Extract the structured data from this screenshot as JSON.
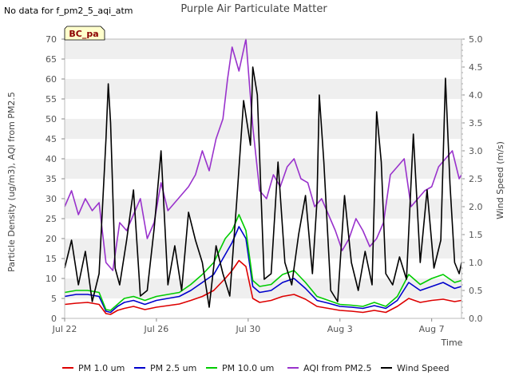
{
  "corner_note": "No data for f_pm2_5_aqi_atm",
  "chart_data": {
    "type": "line",
    "title": "Purple Air Particulate Matter",
    "site_label": "BC_pa",
    "xlabel": "Time",
    "ylabel_left": "Particle Density (ug/m3), AQI from PM2.5",
    "ylabel_right": "Wind Speed (m/s)",
    "ylim_left": [
      0,
      70
    ],
    "ylim_right": [
      0,
      5.0
    ],
    "xlim_days": [
      0,
      17.3
    ],
    "x_ticks": [
      {
        "label": "Jul 22",
        "day": 0
      },
      {
        "label": "Jul 26",
        "day": 4
      },
      {
        "label": "Jul 30",
        "day": 8
      },
      {
        "label": "Aug 3",
        "day": 12
      },
      {
        "label": "Aug 7",
        "day": 16
      }
    ],
    "y_ticks_left": [
      "0",
      "5",
      "10",
      "15",
      "20",
      "25",
      "30",
      "35",
      "40",
      "45",
      "50",
      "55",
      "60",
      "65",
      "70"
    ],
    "y_ticks_right": [
      "0.0",
      "0.5",
      "1.0",
      "1.5",
      "2.0",
      "2.5",
      "3.0",
      "3.5",
      "4.0",
      "4.5",
      "5.0"
    ],
    "legend_position": "bottom",
    "grid": "alternating bands",
    "series": [
      {
        "name": "PM 1.0 um",
        "color": "#dd0000",
        "axis": "left",
        "x": [
          0.0,
          0.5,
          1.0,
          1.5,
          1.8,
          2.0,
          2.3,
          2.6,
          3.0,
          3.5,
          4.0,
          4.5,
          5.0,
          5.5,
          6.0,
          6.5,
          7.0,
          7.3,
          7.6,
          7.9,
          8.2,
          8.5,
          9.0,
          9.5,
          10.0,
          10.5,
          11.0,
          11.5,
          12.0,
          12.5,
          13.0,
          13.5,
          14.0,
          14.5,
          15.0,
          15.5,
          16.0,
          16.5,
          17.0,
          17.3
        ],
        "y": [
          3.5,
          3.8,
          4.0,
          3.5,
          1.2,
          1.0,
          2.0,
          2.5,
          3.0,
          2.2,
          2.8,
          3.2,
          3.6,
          4.5,
          5.5,
          7.0,
          10.0,
          12.0,
          14.5,
          13.0,
          5.0,
          4.0,
          4.5,
          5.5,
          6.0,
          4.8,
          3.0,
          2.5,
          2.0,
          1.8,
          1.5,
          2.0,
          1.5,
          3.0,
          5.0,
          4.0,
          4.5,
          4.8,
          4.2,
          4.5
        ]
      },
      {
        "name": "PM 2.5 um",
        "color": "#0000cc",
        "axis": "left",
        "x": [
          0.0,
          0.5,
          1.0,
          1.5,
          1.8,
          2.0,
          2.3,
          2.6,
          3.0,
          3.5,
          4.0,
          4.5,
          5.0,
          5.5,
          6.0,
          6.5,
          7.0,
          7.3,
          7.6,
          7.9,
          8.2,
          8.5,
          9.0,
          9.5,
          10.0,
          10.5,
          11.0,
          11.5,
          12.0,
          12.5,
          13.0,
          13.5,
          14.0,
          14.5,
          15.0,
          15.5,
          16.0,
          16.5,
          17.0,
          17.3
        ],
        "y": [
          5.5,
          6.0,
          6.0,
          5.5,
          1.8,
          1.5,
          3.0,
          4.0,
          4.5,
          3.5,
          4.5,
          5.0,
          5.5,
          7.0,
          9.0,
          11.0,
          16.0,
          19.0,
          23.0,
          20.0,
          8.0,
          6.5,
          7.0,
          9.0,
          10.0,
          7.5,
          4.5,
          3.8,
          3.0,
          2.8,
          2.5,
          3.2,
          2.5,
          4.5,
          9.0,
          7.0,
          8.0,
          9.0,
          7.5,
          8.0
        ]
      },
      {
        "name": "PM 10.0 um",
        "color": "#00cc00",
        "axis": "left",
        "x": [
          0.0,
          0.5,
          1.0,
          1.5,
          1.8,
          2.0,
          2.3,
          2.6,
          3.0,
          3.5,
          4.0,
          4.5,
          5.0,
          5.5,
          6.0,
          6.5,
          7.0,
          7.3,
          7.6,
          7.9,
          8.2,
          8.5,
          9.0,
          9.5,
          10.0,
          10.5,
          11.0,
          11.5,
          12.0,
          12.5,
          13.0,
          13.5,
          14.0,
          14.5,
          15.0,
          15.5,
          16.0,
          16.5,
          17.0,
          17.3
        ],
        "y": [
          6.5,
          7.0,
          7.0,
          6.5,
          2.2,
          2.0,
          3.5,
          5.0,
          5.5,
          4.5,
          5.5,
          6.0,
          6.5,
          8.5,
          11.0,
          14.0,
          20.0,
          22.0,
          26.0,
          22.0,
          9.5,
          8.0,
          8.5,
          11.0,
          12.0,
          9.0,
          5.5,
          4.5,
          3.5,
          3.3,
          3.0,
          4.0,
          3.0,
          5.5,
          11.0,
          8.5,
          10.0,
          11.0,
          9.0,
          9.5
        ]
      },
      {
        "name": "AQI from PM2.5",
        "color": "#9932cc",
        "axis": "left",
        "x": [
          0.0,
          0.3,
          0.6,
          0.9,
          1.2,
          1.5,
          1.8,
          2.1,
          2.4,
          2.7,
          3.0,
          3.3,
          3.6,
          3.9,
          4.2,
          4.5,
          4.8,
          5.1,
          5.4,
          5.7,
          6.0,
          6.3,
          6.6,
          6.9,
          7.1,
          7.3,
          7.6,
          7.9,
          8.2,
          8.5,
          8.8,
          9.1,
          9.4,
          9.7,
          10.0,
          10.3,
          10.6,
          10.9,
          11.2,
          11.5,
          11.8,
          12.1,
          12.4,
          12.7,
          13.0,
          13.3,
          13.6,
          13.9,
          14.2,
          14.5,
          14.8,
          15.1,
          15.4,
          15.7,
          16.0,
          16.3,
          16.6,
          16.9,
          17.2,
          17.3
        ],
        "y": [
          28.0,
          32.0,
          26.0,
          30.0,
          27.0,
          29.0,
          14.0,
          12.0,
          24.0,
          22.0,
          26.0,
          30.0,
          20.0,
          24.0,
          34.0,
          27.0,
          29.0,
          31.0,
          33.0,
          36.0,
          42.0,
          37.0,
          45.0,
          50.0,
          60.0,
          68.0,
          62.0,
          70.0,
          48.0,
          32.0,
          30.0,
          36.0,
          33.0,
          38.0,
          40.0,
          35.0,
          34.0,
          28.0,
          30.0,
          26.0,
          22.0,
          17.0,
          20.0,
          25.0,
          22.0,
          18.0,
          20.0,
          24.0,
          36.0,
          38.0,
          40.0,
          28.0,
          30.0,
          32.0,
          33.0,
          38.0,
          40.0,
          42.0,
          35.0,
          36.0
        ]
      },
      {
        "name": "Wind Speed",
        "color": "#000000",
        "axis": "right",
        "x": [
          0.0,
          0.3,
          0.6,
          0.9,
          1.2,
          1.5,
          1.8,
          1.9,
          2.0,
          2.2,
          2.4,
          2.7,
          3.0,
          3.3,
          3.6,
          3.9,
          4.2,
          4.5,
          4.8,
          5.1,
          5.4,
          5.7,
          6.0,
          6.3,
          6.6,
          6.9,
          7.2,
          7.5,
          7.8,
          8.1,
          8.2,
          8.4,
          8.7,
          9.0,
          9.3,
          9.6,
          9.9,
          10.2,
          10.5,
          10.8,
          11.0,
          11.1,
          11.3,
          11.6,
          11.9,
          12.2,
          12.5,
          12.8,
          13.1,
          13.4,
          13.6,
          13.8,
          14.0,
          14.3,
          14.6,
          14.9,
          15.2,
          15.5,
          15.8,
          16.1,
          16.4,
          16.6,
          16.8,
          17.0,
          17.2,
          17.3
        ],
        "y": [
          0.9,
          1.4,
          0.6,
          1.2,
          0.3,
          0.8,
          3.2,
          4.2,
          3.5,
          0.9,
          0.6,
          1.4,
          2.3,
          0.4,
          0.5,
          1.6,
          3.0,
          0.6,
          1.3,
          0.5,
          1.9,
          1.4,
          1.0,
          0.2,
          1.3,
          0.8,
          0.4,
          2.1,
          3.9,
          3.1,
          4.5,
          4.0,
          0.7,
          0.8,
          2.8,
          1.0,
          0.6,
          1.5,
          2.2,
          0.8,
          2.1,
          4.0,
          2.8,
          0.5,
          0.3,
          2.2,
          1.0,
          0.5,
          1.2,
          0.6,
          3.7,
          2.8,
          0.8,
          0.6,
          1.1,
          0.7,
          3.3,
          1.0,
          2.3,
          0.9,
          1.4,
          4.3,
          2.4,
          1.0,
          0.8,
          1.0
        ]
      }
    ]
  }
}
